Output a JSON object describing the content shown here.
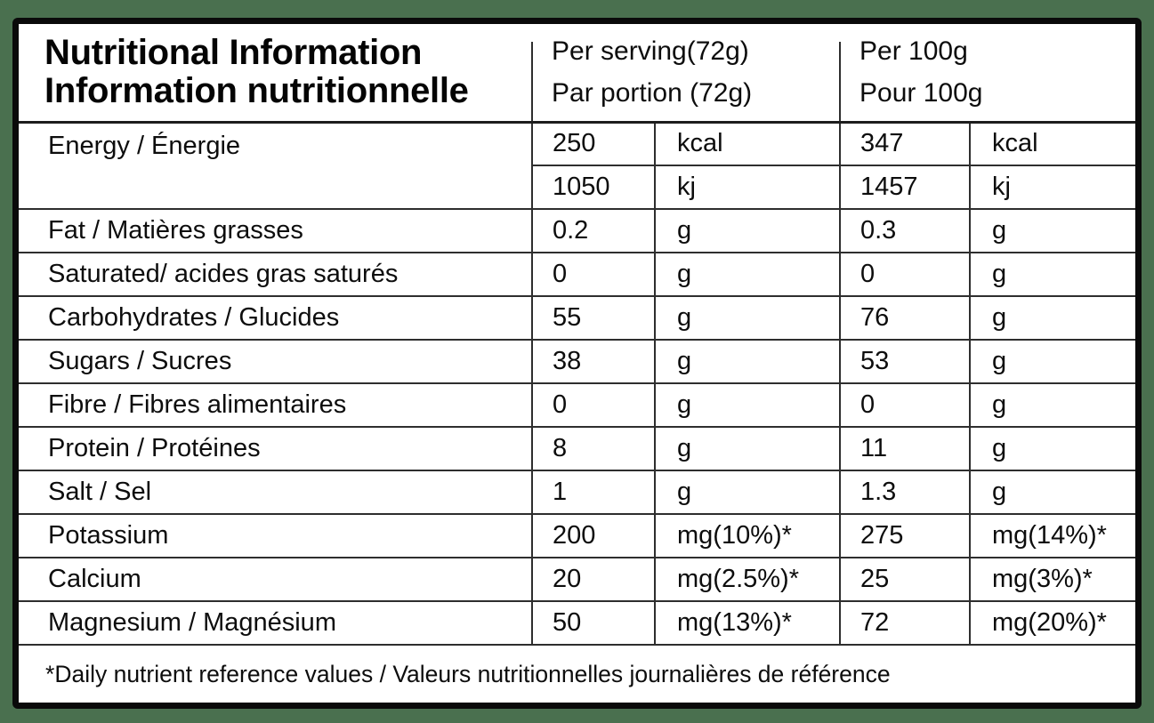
{
  "page": {
    "background_color": "#4a704f",
    "border_color": "#0a0a0a"
  },
  "table": {
    "title_line1": "Nutritional Information",
    "title_line2": "Information nutritionnelle",
    "col_serving": {
      "line1": "Per serving(72g)",
      "line2": "Par portion (72g)"
    },
    "col_per100": {
      "line1": "Per 100g",
      "line2": "Pour 100g"
    },
    "energy": {
      "label": "Energy / Énergie",
      "rows": [
        {
          "serving_value": "250",
          "serving_unit": "kcal",
          "per100_value": "347",
          "per100_unit": "kcal"
        },
        {
          "serving_value": "1050",
          "serving_unit": "kj",
          "per100_value": "1457",
          "per100_unit": "kj"
        }
      ]
    },
    "rows": [
      {
        "label": "Fat / Matières grasses",
        "serving_value": "0.2",
        "serving_unit": "g",
        "per100_value": "0.3",
        "per100_unit": "g"
      },
      {
        "label": "Saturated/ acides gras saturés",
        "serving_value": "0",
        "serving_unit": "g",
        "per100_value": "0",
        "per100_unit": "g"
      },
      {
        "label": "Carbohydrates / Glucides",
        "serving_value": "55",
        "serving_unit": "g",
        "per100_value": "76",
        "per100_unit": "g"
      },
      {
        "label": "Sugars / Sucres",
        "serving_value": "38",
        "serving_unit": "g",
        "per100_value": "53",
        "per100_unit": "g"
      },
      {
        "label": "Fibre / Fibres alimentaires",
        "serving_value": "0",
        "serving_unit": "g",
        "per100_value": "0",
        "per100_unit": "g"
      },
      {
        "label": "Protein / Protéines",
        "serving_value": "8",
        "serving_unit": "g",
        "per100_value": "11",
        "per100_unit": "g"
      },
      {
        "label": "Salt / Sel",
        "serving_value": "1",
        "serving_unit": "g",
        "per100_value": "1.3",
        "per100_unit": "g"
      },
      {
        "label": "Potassium",
        "serving_value": "200",
        "serving_unit": "mg(10%)*",
        "per100_value": "275",
        "per100_unit": "mg(14%)*"
      },
      {
        "label": "Calcium",
        "serving_value": "20",
        "serving_unit": "mg(2.5%)*",
        "per100_value": "25",
        "per100_unit": "mg(3%)*"
      },
      {
        "label": "Magnesium / Magnésium",
        "serving_value": "50",
        "serving_unit": "mg(13%)*",
        "per100_value": "72",
        "per100_unit": "mg(20%)*"
      }
    ],
    "footnote": "*Daily nutrient reference values / Valeurs nutritionnelles journalières de référence"
  }
}
